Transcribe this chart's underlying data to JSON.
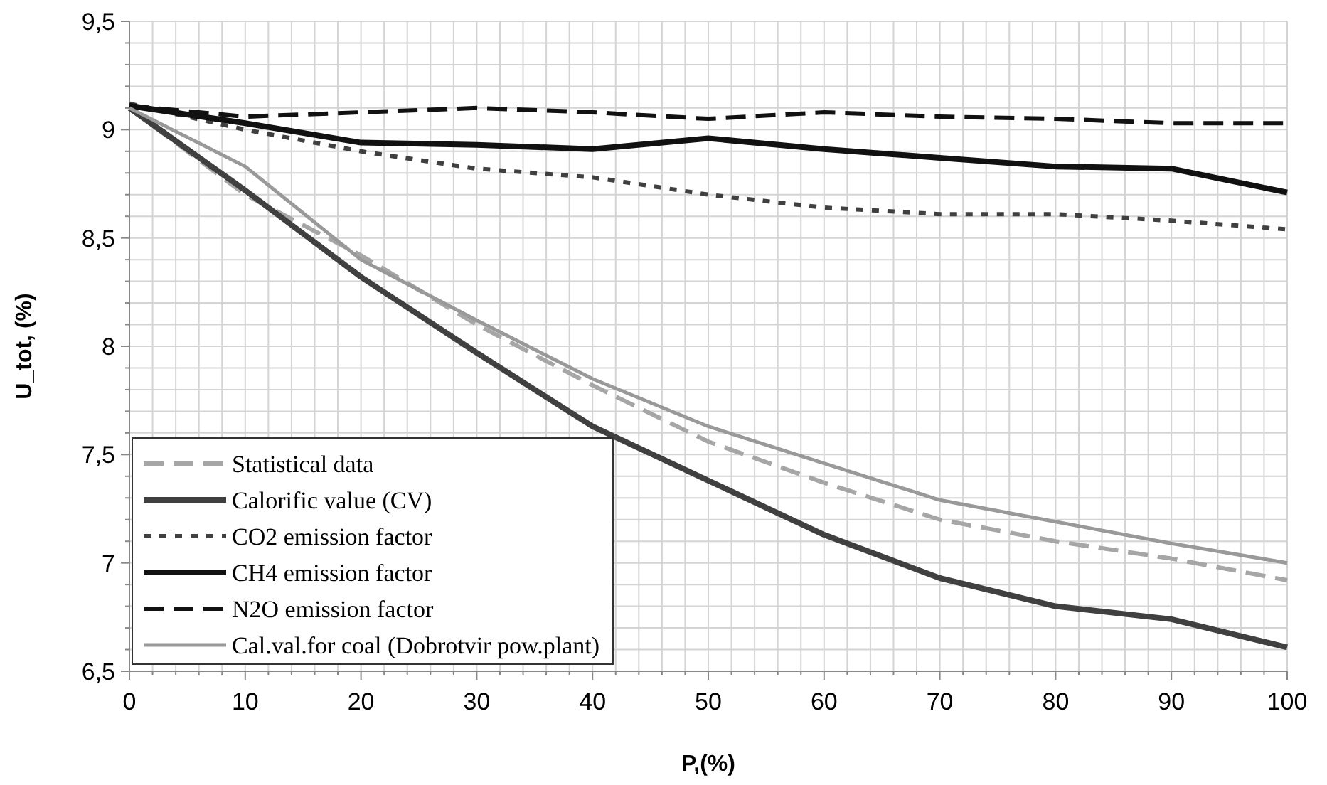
{
  "chart_data": {
    "type": "line",
    "xlabel": "P,(%)",
    "ylabel": "U_tot, (%)",
    "x": [
      0,
      10,
      20,
      30,
      40,
      50,
      60,
      70,
      80,
      90,
      100
    ],
    "xlim": [
      0,
      100
    ],
    "xticks": [
      0,
      {
        "value": 2,
        "label": null
      },
      {
        "value": 4,
        "label": null
      },
      {
        "value": 6,
        "label": null
      },
      {
        "value": 8,
        "label": null
      },
      10,
      {
        "value": 12,
        "label": null
      },
      {
        "value": 14,
        "label": null
      },
      {
        "value": 16,
        "label": null
      },
      {
        "value": 18,
        "label": null
      },
      20,
      {
        "value": 22,
        "label": null
      },
      {
        "value": 24,
        "label": null
      },
      {
        "value": 26,
        "label": null
      },
      {
        "value": 28,
        "label": null
      },
      30,
      {
        "value": 32,
        "label": null
      },
      {
        "value": 34,
        "label": null
      },
      {
        "value": 36,
        "label": null
      },
      {
        "value": 38,
        "label": null
      },
      40,
      {
        "value": 42,
        "label": null
      },
      {
        "value": 44,
        "label": null
      },
      {
        "value": 46,
        "label": null
      },
      {
        "value": 48,
        "label": null
      },
      50,
      {
        "value": 52,
        "label": null
      },
      {
        "value": 54,
        "label": null
      },
      {
        "value": 56,
        "label": null
      },
      {
        "value": 58,
        "label": null
      },
      60,
      {
        "value": 62,
        "label": null
      },
      {
        "value": 64,
        "label": null
      },
      {
        "value": 66,
        "label": null
      },
      {
        "value": 68,
        "label": null
      },
      70,
      {
        "value": 72,
        "label": null
      },
      {
        "value": 74,
        "label": null
      },
      {
        "value": 76,
        "label": null
      },
      {
        "value": 78,
        "label": null
      },
      80,
      {
        "value": 82,
        "label": null
      },
      {
        "value": 84,
        "label": null
      },
      {
        "value": 86,
        "label": null
      },
      {
        "value": 88,
        "label": null
      },
      90,
      {
        "value": 92,
        "label": null
      },
      {
        "value": 94,
        "label": null
      },
      {
        "value": 96,
        "label": null
      },
      {
        "value": 98,
        "label": null
      },
      100
    ],
    "ylim": [
      6.5,
      9.5
    ],
    "yticks": [
      {
        "value": 6.5,
        "label": "6,5"
      },
      {
        "value": 6.6,
        "label": null
      },
      {
        "value": 6.7,
        "label": null
      },
      {
        "value": 6.8,
        "label": null
      },
      {
        "value": 6.9,
        "label": null
      },
      7,
      {
        "value": 7.1,
        "label": null
      },
      {
        "value": 7.2,
        "label": null
      },
      {
        "value": 7.3,
        "label": null
      },
      {
        "value": 7.4,
        "label": null
      },
      {
        "value": 7.5,
        "label": "7,5"
      },
      {
        "value": 7.6,
        "label": null
      },
      {
        "value": 7.7,
        "label": null
      },
      {
        "value": 7.8,
        "label": null
      },
      {
        "value": 7.9,
        "label": null
      },
      8,
      {
        "value": 8.1,
        "label": null
      },
      {
        "value": 8.2,
        "label": null
      },
      {
        "value": 8.3,
        "label": null
      },
      {
        "value": 8.4,
        "label": null
      },
      {
        "value": 8.5,
        "label": "8,5"
      },
      {
        "value": 8.6,
        "label": null
      },
      {
        "value": 8.7,
        "label": null
      },
      {
        "value": 8.8,
        "label": null
      },
      {
        "value": 8.9,
        "label": null
      },
      9,
      {
        "value": 9.1,
        "label": null
      },
      {
        "value": 9.2,
        "label": null
      },
      {
        "value": 9.3,
        "label": null
      },
      {
        "value": 9.4,
        "label": null
      },
      {
        "value": 9.5,
        "label": "9,5"
      }
    ],
    "grid": true,
    "legend": "bottom left",
    "marker": "none",
    "series": [
      {
        "name": "Statistical data",
        "color": "#a6a6a6",
        "line_style": "dashed",
        "values": [
          9.1,
          8.7,
          8.42,
          8.1,
          7.82,
          7.56,
          7.37,
          7.2,
          7.1,
          7.02,
          6.92
        ]
      },
      {
        "name": "Calorific value (CV)",
        "color": "#404040",
        "line_style": "solid",
        "values": [
          9.1,
          8.72,
          8.32,
          7.97,
          7.63,
          7.38,
          7.13,
          6.93,
          6.8,
          6.74,
          6.61
        ]
      },
      {
        "name": "CO2 emission factor",
        "color": "#404040",
        "line_style": "dotted",
        "values": [
          9.12,
          9.0,
          8.9,
          8.82,
          8.78,
          8.7,
          8.64,
          8.61,
          8.61,
          8.58,
          8.54
        ]
      },
      {
        "name": "CH4 emission factor",
        "color": "#111111",
        "line_style": "solid",
        "values": [
          9.11,
          9.03,
          8.94,
          8.93,
          8.91,
          8.96,
          8.91,
          8.87,
          8.83,
          8.82,
          8.71
        ]
      },
      {
        "name": "N2O emission factor",
        "color": "#111111",
        "line_style": "dashed",
        "values": [
          9.11,
          9.06,
          9.08,
          9.1,
          9.08,
          9.05,
          9.08,
          9.06,
          9.05,
          9.03,
          9.03
        ]
      },
      {
        "name": "Cal.val.for coal (Dobrotvir pow.plant)",
        "color": "#999999",
        "line_style": "solid",
        "values": [
          9.1,
          8.83,
          8.4,
          8.12,
          7.85,
          7.63,
          7.46,
          7.29,
          7.19,
          7.09,
          7.0
        ]
      }
    ]
  }
}
